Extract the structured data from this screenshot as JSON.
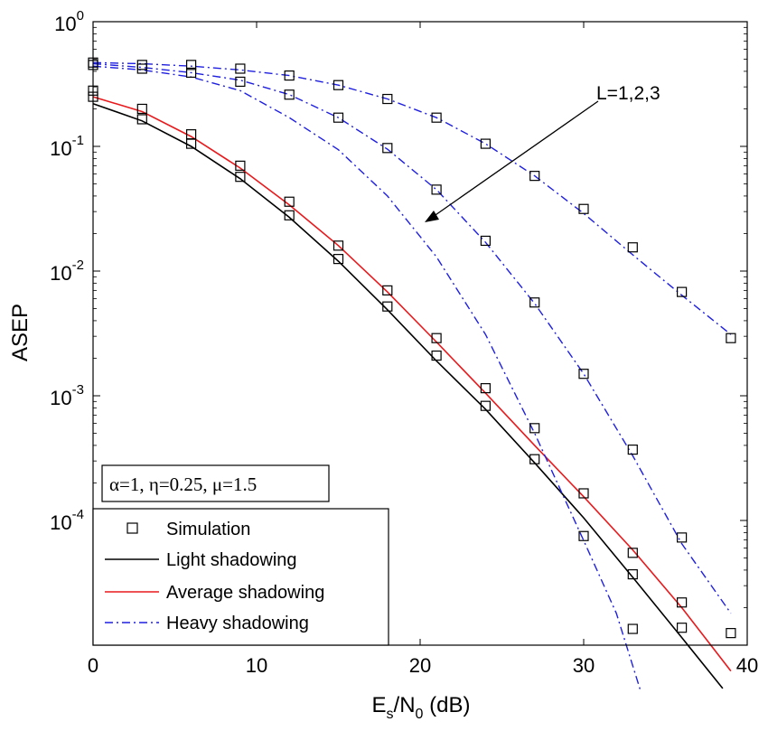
{
  "chart_data": {
    "type": "line",
    "yscale": "log",
    "xlim": [
      0,
      40
    ],
    "ylim": [
      1e-05,
      1
    ],
    "x_ticks": [
      0,
      10,
      20,
      30,
      40
    ],
    "y_ticks": [
      {
        "base": "10",
        "exp": "0",
        "value": 1
      },
      {
        "base": "10",
        "exp": "-1",
        "value": 0.1
      },
      {
        "base": "10",
        "exp": "-2",
        "value": 0.01
      },
      {
        "base": "10",
        "exp": "-3",
        "value": 0.001
      },
      {
        "base": "10",
        "exp": "-4",
        "value": 0.0001
      }
    ],
    "xlabel_main": "E",
    "xlabel_sub1": "s",
    "xlabel_mid": "/N",
    "xlabel_sub2": "0",
    "xlabel_tail": " (dB)",
    "ylabel": "ASEP",
    "params_text": "α=1, η=0.25, μ=1.5",
    "annotation": {
      "text": "L=1,2,3"
    },
    "legend": [
      {
        "label": "Simulation",
        "style": "marker"
      },
      {
        "label": "Light shadowing",
        "style": "solid",
        "color": "#000000"
      },
      {
        "label": "Average shadowing",
        "style": "solid",
        "color": "#e8191c"
      },
      {
        "label": "Heavy shadowing",
        "style": "dashdot",
        "color": "#1f1fe0"
      }
    ],
    "series": [
      {
        "group": "Light shadowing",
        "color": "#000000",
        "style": "solid",
        "x": [
          0,
          3,
          6,
          9,
          12,
          15,
          18,
          21,
          24,
          27,
          30,
          33,
          36,
          38.5
        ],
        "y": [
          0.22,
          0.16,
          0.1,
          0.055,
          0.027,
          0.012,
          0.0049,
          0.0019,
          0.00078,
          0.00029,
          0.000105,
          3.5e-05,
          1.15e-05,
          4.5e-06
        ]
      },
      {
        "group": "Average shadowing",
        "color": "#e8191c",
        "style": "solid",
        "x": [
          0,
          3,
          6,
          9,
          12,
          15,
          18,
          21,
          24,
          27,
          30,
          33,
          36,
          39
        ],
        "y": [
          0.25,
          0.19,
          0.12,
          0.067,
          0.034,
          0.016,
          0.0068,
          0.0027,
          0.00105,
          0.0004,
          0.000155,
          5.8e-05,
          2e-05,
          6.2e-06
        ]
      },
      {
        "group": "Heavy shadowing",
        "name": "L=1",
        "color": "#1f1fe0",
        "style": "dashdot",
        "x": [
          0,
          3,
          6,
          9,
          12,
          15,
          18,
          21,
          24,
          27,
          30,
          32,
          33.5
        ],
        "y": [
          0.44,
          0.41,
          0.36,
          0.28,
          0.17,
          0.094,
          0.04,
          0.013,
          0.0031,
          0.0005,
          6.9e-05,
          1.8e-05,
          4.2e-06
        ]
      },
      {
        "group": "Heavy shadowing",
        "name": "L=2",
        "color": "#1f1fe0",
        "style": "dashdot",
        "x": [
          0,
          3,
          6,
          9,
          12,
          15,
          18,
          21,
          24,
          27,
          30,
          33,
          36,
          39
        ],
        "y": [
          0.46,
          0.43,
          0.39,
          0.34,
          0.26,
          0.17,
          0.095,
          0.045,
          0.017,
          0.0055,
          0.0015,
          0.00033,
          6.5e-05,
          1.8e-05
        ]
      },
      {
        "group": "Heavy shadowing",
        "name": "L=3",
        "color": "#1f1fe0",
        "style": "dashdot",
        "x": [
          0,
          3,
          6,
          9,
          12,
          15,
          18,
          21,
          24,
          27,
          30,
          33,
          36,
          39
        ],
        "y": [
          0.47,
          0.46,
          0.44,
          0.41,
          0.37,
          0.31,
          0.24,
          0.17,
          0.105,
          0.058,
          0.029,
          0.0135,
          0.0064,
          0.0031
        ]
      }
    ],
    "markers": {
      "x": [
        0,
        0,
        0,
        0,
        3,
        3,
        3,
        3,
        6,
        6,
        6,
        6,
        9,
        9,
        9,
        9,
        12,
        12,
        12,
        12,
        15,
        15,
        15,
        15,
        18,
        18,
        18,
        18,
        21,
        21,
        21,
        21,
        24,
        24,
        24,
        24,
        27,
        27,
        27,
        27,
        30,
        30,
        30,
        30,
        33,
        33,
        33,
        33,
        33,
        36,
        36,
        36,
        36,
        39,
        39
      ],
      "y": [
        0.28,
        0.25,
        0.47,
        0.45,
        0.2,
        0.165,
        0.45,
        0.42,
        0.125,
        0.105,
        0.45,
        0.39,
        0.07,
        0.057,
        0.42,
        0.33,
        0.036,
        0.028,
        0.37,
        0.26,
        0.016,
        0.0125,
        0.31,
        0.17,
        0.007,
        0.0052,
        0.24,
        0.097,
        0.0029,
        0.0021,
        0.17,
        0.045,
        0.00115,
        0.00083,
        0.105,
        0.0175,
        0.00055,
        0.00031,
        0.058,
        0.0056,
        0.000165,
        7.5e-05,
        0.0315,
        0.0015,
        5.5e-05,
        3.7e-05,
        1.35e-05,
        0.0155,
        0.00037,
        2.2e-05,
        1.38e-05,
        0.0068,
        7.3e-05,
        1.25e-05,
        0.0029
      ]
    }
  }
}
